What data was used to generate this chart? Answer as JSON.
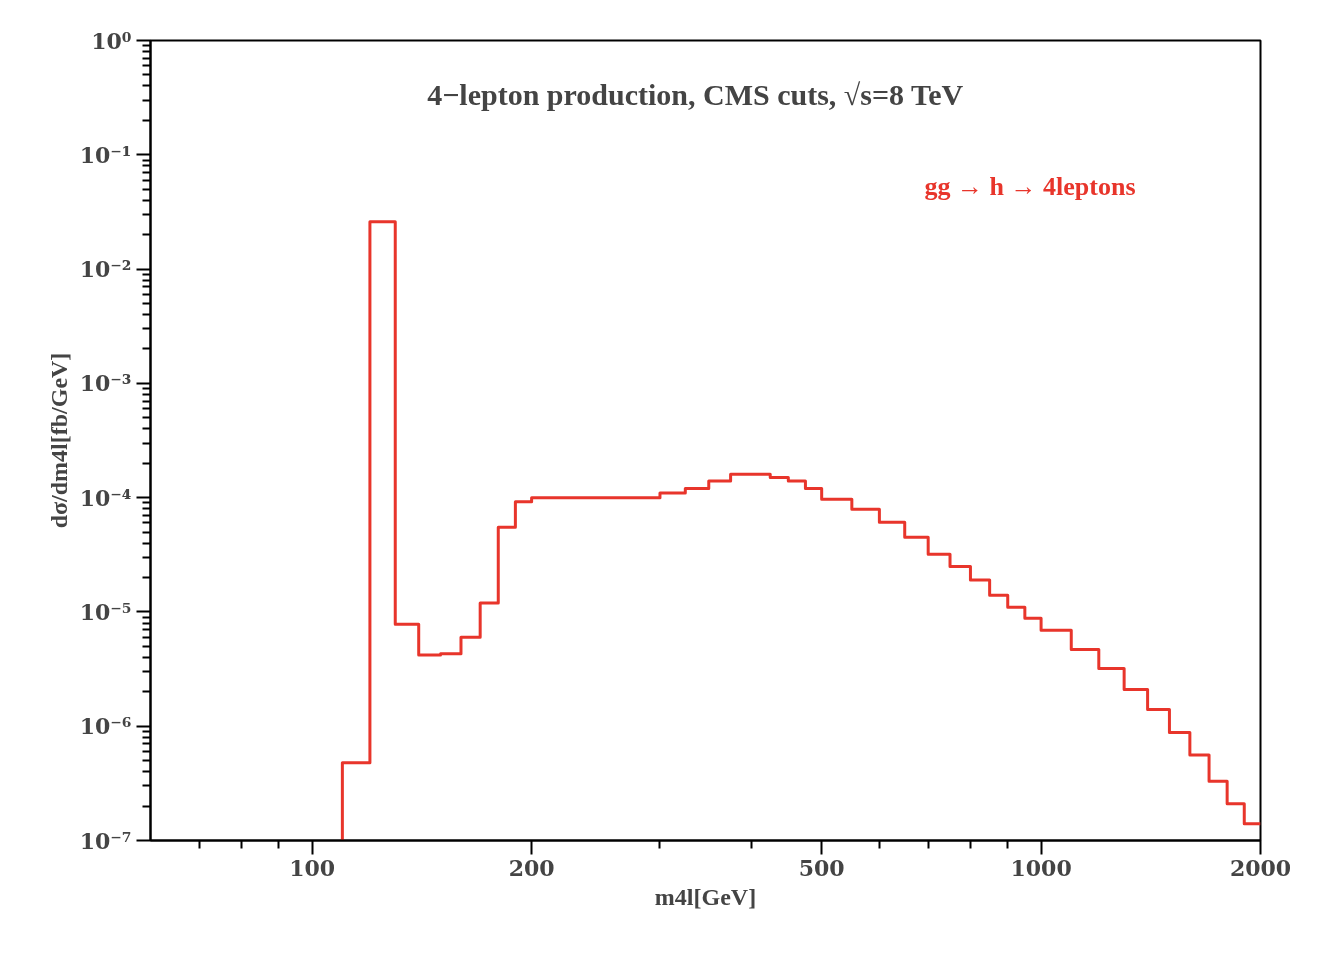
{
  "chart_data": {
    "type": "histogram",
    "title": "4−lepton production, CMS cuts, √s=8 TeV",
    "xlabel": "m4l[GeV]",
    "ylabel": "dσ/dm4l[fb/GeV]",
    "bins": [
      110,
      120,
      130,
      140,
      150,
      160,
      170,
      180,
      190,
      200,
      225,
      250,
      275,
      300,
      325,
      350,
      375,
      400,
      425,
      450,
      475,
      500,
      550,
      600,
      650,
      700,
      750,
      800,
      850,
      900,
      950,
      1000,
      1100,
      1200,
      1300,
      1400,
      1500,
      1600,
      1700,
      1800,
      1900,
      2000
    ],
    "series": [
      {
        "name": "gg → h → 4leptons",
        "color": "#e8352b",
        "values": [
          4.8e-07,
          0.026,
          7.8e-06,
          4.2e-06,
          4.3e-06,
          6e-06,
          1.2e-05,
          5.5e-05,
          9.2e-05,
          0.0001,
          0.0001,
          0.0001,
          0.0001,
          0.00011,
          0.00012,
          0.00014,
          0.00016,
          0.00016,
          0.00015,
          0.00014,
          0.00012,
          9.7e-05,
          7.9e-05,
          6.1e-05,
          4.5e-05,
          3.2e-05,
          2.5e-05,
          1.9e-05,
          1.4e-05,
          1.1e-05,
          8.8e-06,
          6.9e-06,
          4.7e-06,
          3.2e-06,
          2.1e-06,
          1.4e-06,
          8.8e-07,
          5.6e-07,
          3.3e-07,
          2.1e-07,
          1.4e-07
        ]
      }
    ],
    "log": "xy",
    "xlim": [
      60,
      2000
    ],
    "xticks": [
      {
        "value": 70,
        "label": null
      },
      {
        "value": 80,
        "label": null
      },
      {
        "value": 90,
        "label": null
      },
      100,
      200,
      {
        "value": 300,
        "label": null
      },
      {
        "value": 400,
        "label": null
      },
      500,
      {
        "value": 600,
        "label": null
      },
      {
        "value": 700,
        "label": null
      },
      {
        "value": 800,
        "label": null
      },
      {
        "value": 900,
        "label": null
      },
      1000,
      2000
    ],
    "ylim": [
      1e-07,
      1
    ],
    "yticks": [
      {
        "value": 1e-07,
        "label": "10⁻⁷"
      },
      {
        "value": 1e-06,
        "label": "10⁻⁶"
      },
      {
        "value": 1e-05,
        "label": "10⁻⁵"
      },
      {
        "value": 0.0001,
        "label": "10⁻⁴"
      },
      {
        "value": 0.001,
        "label": "10⁻³"
      },
      {
        "value": 0.01,
        "label": "10⁻²"
      },
      {
        "value": 0.1,
        "label": "10⁻¹"
      },
      {
        "value": 1,
        "label": "10⁰"
      }
    ],
    "grid": false
  }
}
